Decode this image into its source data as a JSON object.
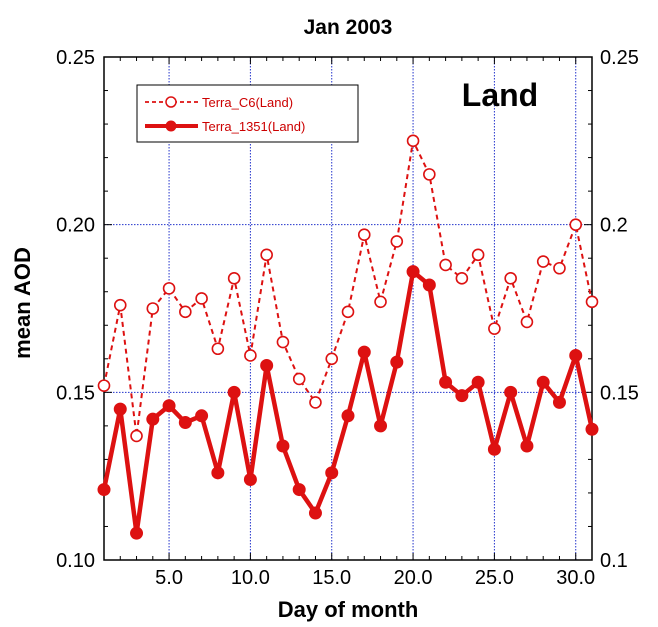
{
  "chart_data": {
    "type": "line",
    "title": "Jan 2003",
    "xlabel": "Day of month",
    "ylabel": "mean AOD",
    "annotation": "Land",
    "xlim": [
      1,
      31
    ],
    "ylim": [
      0.1,
      0.25
    ],
    "grid": true,
    "legend_position": "top-left",
    "x_ticks": [
      5,
      10,
      15,
      20,
      25,
      30
    ],
    "x_tick_labels": [
      "5.0",
      "10.0",
      "15.0",
      "20.0",
      "25.0",
      "30.0"
    ],
    "y_ticks_left": [
      0.1,
      0.15,
      0.2,
      0.25
    ],
    "y_tick_labels_left": [
      "0.10",
      "0.15",
      "0.20",
      "0.25"
    ],
    "y_ticks_right": [
      0.1,
      0.15,
      0.2,
      0.25
    ],
    "y_tick_labels_right": [
      "0.1",
      "0.15",
      "0.2",
      "0.25"
    ],
    "x": [
      1,
      2,
      3,
      4,
      5,
      6,
      7,
      8,
      9,
      10,
      11,
      12,
      13,
      14,
      15,
      16,
      17,
      18,
      19,
      20,
      21,
      22,
      23,
      24,
      25,
      26,
      27,
      28,
      29,
      30,
      31
    ],
    "series": [
      {
        "name": "Terra_C6(Land)",
        "color": "#dd1111",
        "style": "dashed",
        "marker": "open-circle",
        "values": [
          0.152,
          0.176,
          0.137,
          0.175,
          0.181,
          0.174,
          0.178,
          0.163,
          0.184,
          0.161,
          0.191,
          0.165,
          0.154,
          0.147,
          0.16,
          0.174,
          0.197,
          0.177,
          0.195,
          0.225,
          0.215,
          0.188,
          0.184,
          0.191,
          0.169,
          0.184,
          0.171,
          0.189,
          0.187,
          0.2,
          0.177
        ]
      },
      {
        "name": "Terra_1351(Land)",
        "color": "#dd1111",
        "style": "solid",
        "marker": "filled-circle",
        "values": [
          0.121,
          0.145,
          0.108,
          0.142,
          0.146,
          0.141,
          0.143,
          0.126,
          0.15,
          0.124,
          0.158,
          0.134,
          0.121,
          0.114,
          0.126,
          0.143,
          0.162,
          0.14,
          0.159,
          0.186,
          0.182,
          0.153,
          0.149,
          0.153,
          0.133,
          0.15,
          0.134,
          0.153,
          0.147,
          0.161,
          0.139
        ]
      }
    ]
  }
}
